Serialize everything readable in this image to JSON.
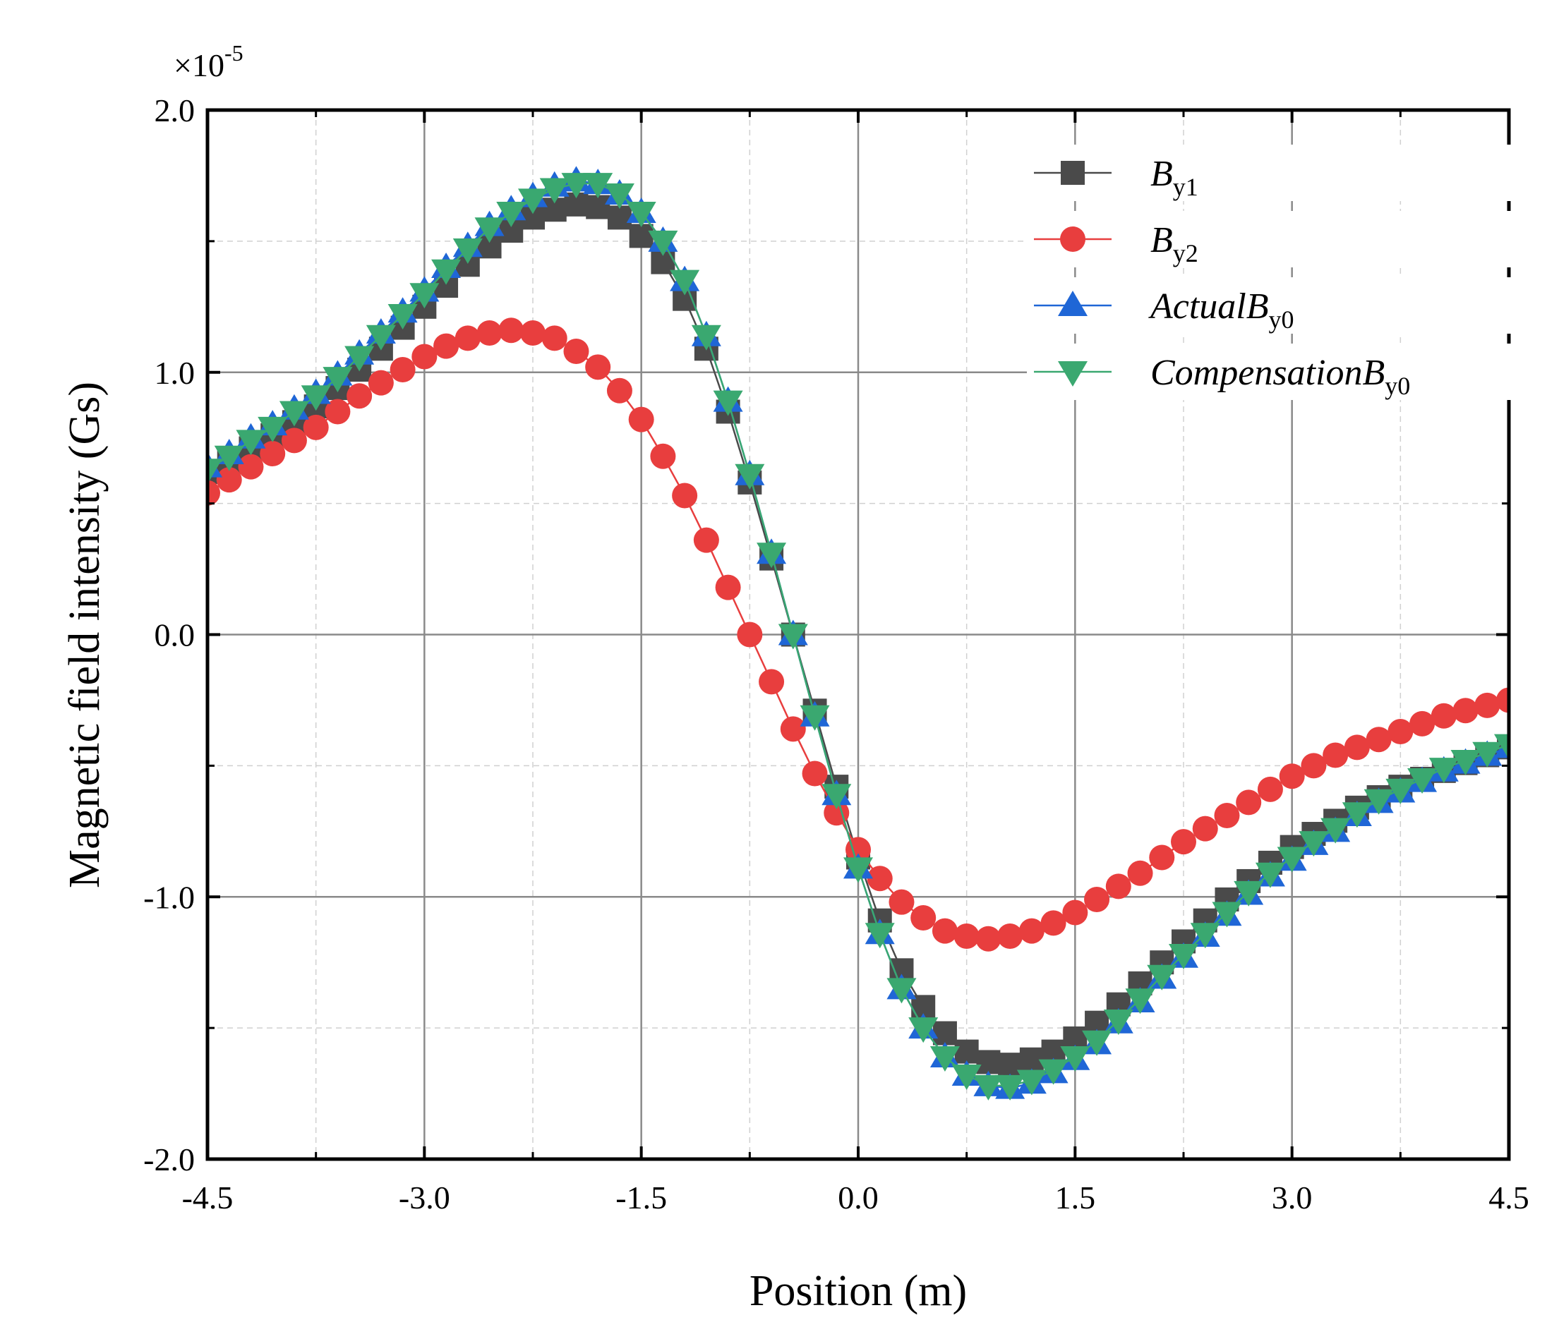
{
  "chart_data": {
    "type": "line",
    "xlabel": "Position (m)",
    "ylabel": "Magnetic field intensity (Gs)",
    "y_multiplier": {
      "base": "×10",
      "exponent": "-5"
    },
    "xlim": [
      -4.5,
      4.5
    ],
    "ylim": [
      -2.0,
      2.0
    ],
    "xticks": [
      -4.5,
      -3.0,
      -1.5,
      0.0,
      1.5,
      3.0,
      4.5
    ],
    "xtick_labels": [
      "-4.5",
      "-3.0",
      "-1.5",
      "0.0",
      "1.5",
      "3.0",
      "4.5"
    ],
    "yticks": [
      -2.0,
      -1.0,
      0.0,
      1.0,
      2.0
    ],
    "ytick_labels": [
      "-2.0",
      "-1.0",
      "0.0",
      "1.0",
      "2.0"
    ],
    "grid": true,
    "legend_position": "top-right",
    "x": [
      -4.5,
      -4.35,
      -4.2,
      -4.05,
      -3.9,
      -3.75,
      -3.6,
      -3.45,
      -3.3,
      -3.15,
      -3.0,
      -2.85,
      -2.7,
      -2.55,
      -2.4,
      -2.25,
      -2.1,
      -1.95,
      -1.8,
      -1.65,
      -1.5,
      -1.35,
      -1.2,
      -1.05,
      -0.9,
      -0.75,
      -0.6,
      -0.45,
      -0.3,
      -0.15,
      0.0,
      0.15,
      0.3,
      0.45,
      0.6,
      0.75,
      0.9,
      1.05,
      1.2,
      1.35,
      1.5,
      1.65,
      1.8,
      1.95,
      2.1,
      2.25,
      2.4,
      2.55,
      2.7,
      2.85,
      3.0,
      3.15,
      3.3,
      3.45,
      3.6,
      3.75,
      3.9,
      4.05,
      4.2,
      4.35,
      4.5
    ],
    "series": [
      {
        "name": "B",
        "sub": "y1",
        "color": "#4a4a4a",
        "marker": "square",
        "values": [
          0.62,
          0.66,
          0.71,
          0.76,
          0.81,
          0.87,
          0.94,
          1.01,
          1.09,
          1.17,
          1.25,
          1.33,
          1.41,
          1.48,
          1.54,
          1.59,
          1.62,
          1.64,
          1.63,
          1.59,
          1.52,
          1.42,
          1.28,
          1.09,
          0.85,
          0.58,
          0.29,
          0.0,
          -0.29,
          -0.58,
          -0.85,
          -1.09,
          -1.28,
          -1.42,
          -1.52,
          -1.59,
          -1.63,
          -1.64,
          -1.62,
          -1.59,
          -1.54,
          -1.48,
          -1.41,
          -1.33,
          -1.25,
          -1.17,
          -1.09,
          -1.01,
          -0.94,
          -0.87,
          -0.81,
          -0.76,
          -0.71,
          -0.66,
          -0.62,
          -0.58,
          -0.55,
          -0.52,
          -0.49,
          -0.46,
          -0.43
        ]
      },
      {
        "name": "B",
        "sub": "y2",
        "color": "#e83e3e",
        "marker": "circle",
        "values": [
          0.54,
          0.59,
          0.64,
          0.69,
          0.74,
          0.79,
          0.85,
          0.91,
          0.96,
          1.01,
          1.06,
          1.1,
          1.13,
          1.15,
          1.16,
          1.15,
          1.13,
          1.08,
          1.02,
          0.93,
          0.82,
          0.68,
          0.53,
          0.36,
          0.18,
          0.0,
          -0.18,
          -0.36,
          -0.53,
          -0.68,
          -0.82,
          -0.93,
          -1.02,
          -1.08,
          -1.13,
          -1.15,
          -1.16,
          -1.15,
          -1.13,
          -1.1,
          -1.06,
          -1.01,
          -0.96,
          -0.91,
          -0.85,
          -0.79,
          -0.74,
          -0.69,
          -0.64,
          -0.59,
          -0.54,
          -0.5,
          -0.46,
          -0.43,
          -0.4,
          -0.37,
          -0.34,
          -0.31,
          -0.29,
          -0.27,
          -0.25
        ]
      },
      {
        "name": "ActualB",
        "sub": "y0",
        "color": "#1f66d6",
        "marker": "triangle-up",
        "values": [
          0.64,
          0.69,
          0.75,
          0.8,
          0.86,
          0.92,
          0.99,
          1.07,
          1.15,
          1.23,
          1.31,
          1.4,
          1.48,
          1.56,
          1.62,
          1.67,
          1.71,
          1.73,
          1.72,
          1.68,
          1.61,
          1.5,
          1.35,
          1.14,
          0.89,
          0.61,
          0.31,
          0.0,
          -0.31,
          -0.61,
          -0.89,
          -1.14,
          -1.35,
          -1.5,
          -1.61,
          -1.68,
          -1.72,
          -1.73,
          -1.71,
          -1.67,
          -1.62,
          -1.56,
          -1.48,
          -1.4,
          -1.31,
          -1.23,
          -1.15,
          -1.07,
          -0.99,
          -0.92,
          -0.86,
          -0.8,
          -0.75,
          -0.69,
          -0.64,
          -0.6,
          -0.56,
          -0.52,
          -0.49,
          -0.46,
          -0.43
        ]
      },
      {
        "name": "CompensationB",
        "sub": "y0",
        "color": "#3aa870",
        "marker": "triangle-down",
        "values": [
          0.63,
          0.68,
          0.74,
          0.79,
          0.85,
          0.91,
          0.98,
          1.06,
          1.14,
          1.22,
          1.3,
          1.39,
          1.47,
          1.55,
          1.61,
          1.66,
          1.7,
          1.72,
          1.72,
          1.68,
          1.61,
          1.5,
          1.35,
          1.14,
          0.89,
          0.61,
          0.31,
          0.0,
          -0.31,
          -0.61,
          -0.89,
          -1.14,
          -1.35,
          -1.5,
          -1.61,
          -1.68,
          -1.72,
          -1.72,
          -1.7,
          -1.66,
          -1.61,
          -1.55,
          -1.47,
          -1.39,
          -1.3,
          -1.22,
          -1.14,
          -1.06,
          -0.98,
          -0.91,
          -0.85,
          -0.79,
          -0.74,
          -0.68,
          -0.63,
          -0.59,
          -0.55,
          -0.51,
          -0.48,
          -0.45,
          -0.42
        ]
      }
    ]
  }
}
